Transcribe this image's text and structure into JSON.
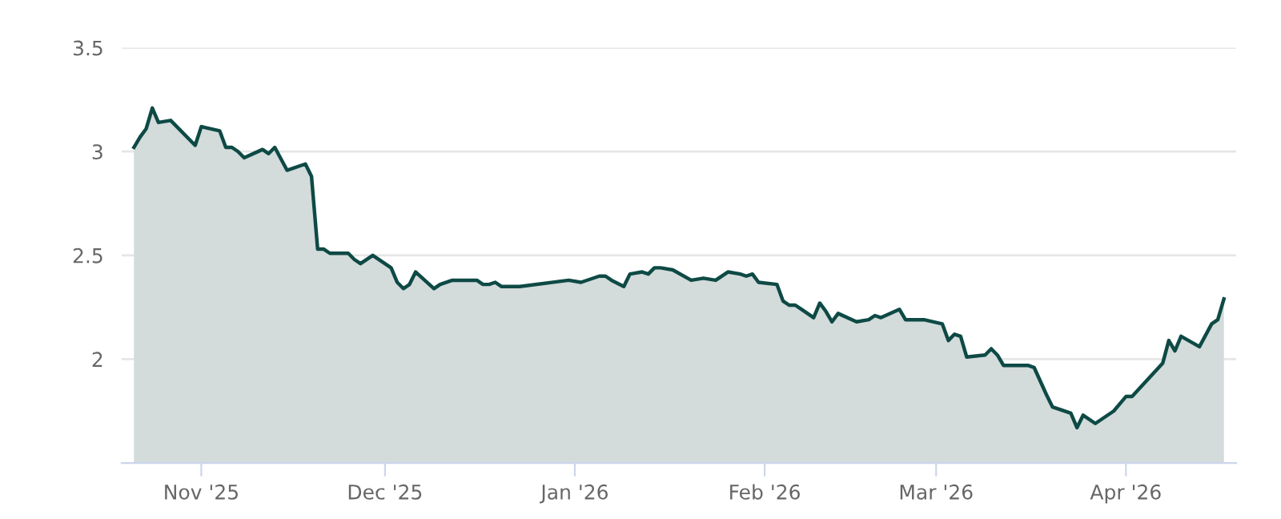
{
  "chart_data": {
    "type": "area",
    "grid": "y",
    "ylim": [
      1.5,
      3.5
    ],
    "yticks": [
      2,
      2.5,
      3,
      3.5
    ],
    "xlim": [
      "2025-10-19",
      "2026-04-19"
    ],
    "xticks": [
      {
        "value": "2025-11-01",
        "label": "Nov '25"
      },
      {
        "value": "2025-12-01",
        "label": "Dec '25"
      },
      {
        "value": "2026-01-01",
        "label": "Jan '26"
      },
      {
        "value": "2026-02-01",
        "label": "Feb '26"
      },
      {
        "value": "2026-03-01",
        "label": "Mar '26"
      },
      {
        "value": "2026-04-01",
        "label": "Apr '26"
      }
    ],
    "series": [
      {
        "color": "#0e4a45",
        "x": [
          "2025-10-21",
          "2025-10-22",
          "2025-10-23",
          "2025-10-24",
          "2025-10-25",
          "2025-10-27",
          "2025-10-31",
          "2025-11-01",
          "2025-11-04",
          "2025-11-05",
          "2025-11-06",
          "2025-11-07",
          "2025-11-08",
          "2025-11-11",
          "2025-11-12",
          "2025-11-13",
          "2025-11-15",
          "2025-11-18",
          "2025-11-19",
          "2025-11-20",
          "2025-11-21",
          "2025-11-22",
          "2025-11-25",
          "2025-11-26",
          "2025-11-27",
          "2025-11-29",
          "2025-12-02",
          "2025-12-03",
          "2025-12-04",
          "2025-12-05",
          "2025-12-06",
          "2025-12-09",
          "2025-12-10",
          "2025-12-12",
          "2025-12-13",
          "2025-12-16",
          "2025-12-17",
          "2025-12-18",
          "2025-12-19",
          "2025-12-20",
          "2025-12-23",
          "2025-12-31",
          "2026-01-02",
          "2026-01-05",
          "2026-01-06",
          "2026-01-07",
          "2026-01-09",
          "2026-01-10",
          "2026-01-12",
          "2026-01-13",
          "2026-01-14",
          "2026-01-15",
          "2026-01-17",
          "2026-01-20",
          "2026-01-22",
          "2026-01-24",
          "2026-01-26",
          "2026-01-28",
          "2026-01-29",
          "2026-01-30",
          "2026-01-31",
          "2026-02-03",
          "2026-02-04",
          "2026-02-05",
          "2026-02-06",
          "2026-02-07",
          "2026-02-09",
          "2026-02-10",
          "2026-02-11",
          "2026-02-12",
          "2026-02-13",
          "2026-02-16",
          "2026-02-18",
          "2026-02-19",
          "2026-02-20",
          "2026-02-23",
          "2026-02-24",
          "2026-02-27",
          "2026-03-02",
          "2026-03-03",
          "2026-03-04",
          "2026-03-05",
          "2026-03-06",
          "2026-03-09",
          "2026-03-10",
          "2026-03-11",
          "2026-03-12",
          "2026-03-16",
          "2026-03-17",
          "2026-03-19",
          "2026-03-20",
          "2026-03-23",
          "2026-03-24",
          "2026-03-25",
          "2026-03-27",
          "2026-03-30",
          "2026-04-01",
          "2026-04-02",
          "2026-04-07",
          "2026-04-08",
          "2026-04-09",
          "2026-04-10",
          "2026-04-13",
          "2026-04-15",
          "2026-04-16",
          "2026-04-17"
        ],
        "values": [
          3.02,
          3.07,
          3.11,
          3.21,
          3.14,
          3.15,
          3.03,
          3.12,
          3.1,
          3.02,
          3.02,
          3.0,
          2.97,
          3.01,
          2.99,
          3.02,
          2.91,
          2.94,
          2.88,
          2.53,
          2.53,
          2.51,
          2.51,
          2.48,
          2.46,
          2.5,
          2.44,
          2.37,
          2.34,
          2.36,
          2.42,
          2.34,
          2.36,
          2.38,
          2.38,
          2.38,
          2.36,
          2.36,
          2.37,
          2.35,
          2.35,
          2.38,
          2.37,
          2.4,
          2.4,
          2.38,
          2.35,
          2.41,
          2.42,
          2.41,
          2.44,
          2.44,
          2.43,
          2.38,
          2.39,
          2.38,
          2.42,
          2.41,
          2.4,
          2.41,
          2.37,
          2.36,
          2.28,
          2.26,
          2.26,
          2.24,
          2.2,
          2.27,
          2.23,
          2.18,
          2.22,
          2.18,
          2.19,
          2.21,
          2.2,
          2.24,
          2.19,
          2.19,
          2.17,
          2.09,
          2.12,
          2.11,
          2.01,
          2.02,
          2.05,
          2.02,
          1.97,
          1.97,
          1.96,
          1.83,
          1.77,
          1.74,
          1.67,
          1.73,
          1.69,
          1.75,
          1.82,
          1.82,
          1.98,
          2.09,
          2.04,
          2.11,
          2.06,
          2.17,
          2.19,
          2.29
        ]
      }
    ]
  }
}
